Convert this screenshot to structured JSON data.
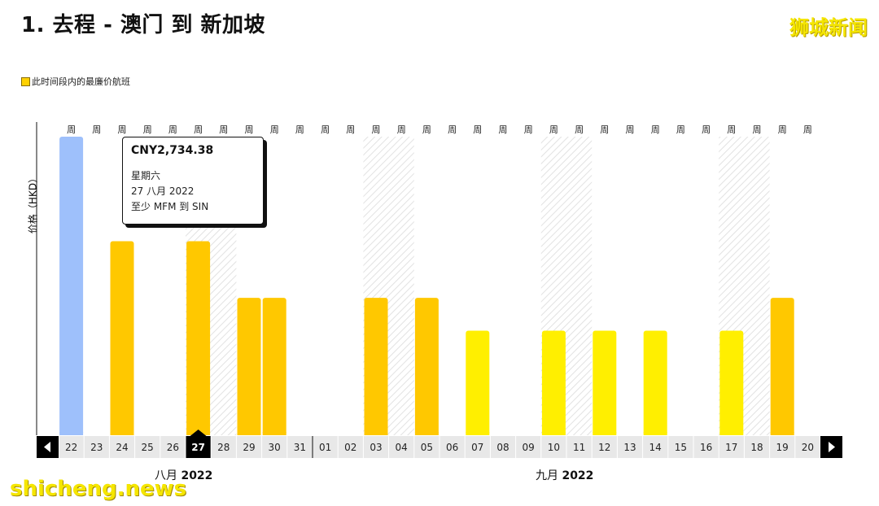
{
  "title": "1. 去程 - 澳门 到 新加坡",
  "brand": "狮城新闻",
  "legend": {
    "label": "此时间段内的最廉价航班"
  },
  "watermark": "shicheng.news",
  "tooltip": {
    "price": "CNY2,734.38",
    "weekday": "星期六",
    "date": "27 八月 2022",
    "route": "至少 MFM 到 SIN"
  },
  "months": [
    {
      "label": "八月",
      "year": "2022"
    },
    {
      "label": "九月",
      "year": "2022"
    }
  ],
  "colors": {
    "selected": "#9ec0fb",
    "cheap_orange": "#ffc800",
    "cheapest_yellow": "#ffef00",
    "axis_cell": "#e8e8e8",
    "nav": "#000000"
  },
  "chart_data": {
    "type": "bar",
    "ylabel": "价格（HKD）",
    "week_label": "周",
    "categories": [
      "22",
      "23",
      "24",
      "25",
      "26",
      "27",
      "28",
      "29",
      "30",
      "31",
      "01",
      "02",
      "03",
      "04",
      "05",
      "06",
      "07",
      "08",
      "09",
      "10",
      "11",
      "12",
      "13",
      "14",
      "15",
      "16",
      "17",
      "18",
      "19",
      "20"
    ],
    "values": [
      100,
      null,
      65,
      null,
      null,
      65,
      null,
      46,
      46,
      null,
      null,
      null,
      46,
      null,
      46,
      null,
      35,
      null,
      null,
      35,
      null,
      35,
      null,
      35,
      null,
      null,
      35,
      null,
      46,
      null
    ],
    "bar_colors": [
      "selected",
      null,
      "cheap_orange",
      null,
      null,
      "cheap_orange",
      null,
      "cheap_orange",
      "cheap_orange",
      null,
      null,
      null,
      "cheap_orange",
      null,
      "cheap_orange",
      null,
      "cheapest_yellow",
      null,
      null,
      "cheapest_yellow",
      null,
      "cheapest_yellow",
      null,
      "cheapest_yellow",
      null,
      null,
      "cheapest_yellow",
      null,
      "cheap_orange",
      null
    ],
    "weekend_indices": [
      5,
      6,
      12,
      13,
      19,
      20,
      26,
      27
    ],
    "selected_index": 5,
    "ylim": [
      0,
      100
    ]
  }
}
